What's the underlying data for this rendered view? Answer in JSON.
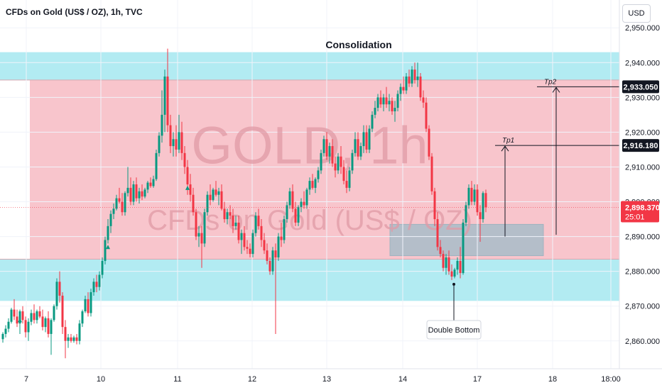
{
  "header": {
    "symbol": "CFDs on Gold (US$ / OZ), 1h, TVC",
    "currency": "USD"
  },
  "chart_data": {
    "type": "candlestick",
    "title": "Consolidation",
    "watermark": {
      "line1": "GOLD, 1h",
      "line2": "CFDs on Gold (US$ / OZ)"
    },
    "ylim": [
      2852,
      2958
    ],
    "xlim": [
      0,
      880
    ],
    "y_ticks": [
      2860,
      2870,
      2880,
      2890,
      2900,
      2910,
      2920,
      2930,
      2940,
      2950
    ],
    "y_tick_labels": [
      "2,860.000",
      "2,870.000",
      "2,880.000",
      "2,890.000",
      "2,900.000",
      "2,910.000",
      "2,920.000",
      "2,930.000",
      "2,940.000",
      "2,950.000"
    ],
    "x_ticks": [
      {
        "x": 37,
        "label": "7"
      },
      {
        "x": 142,
        "label": "10"
      },
      {
        "x": 250,
        "label": "11"
      },
      {
        "x": 355,
        "label": "12"
      },
      {
        "x": 460,
        "label": "13"
      },
      {
        "x": 567,
        "label": "14"
      },
      {
        "x": 672,
        "label": "17"
      },
      {
        "x": 778,
        "label": "18"
      },
      {
        "x": 860,
        "label": "18:00"
      }
    ],
    "zones": [
      {
        "name": "resistance-zone",
        "y_top": 2943,
        "y_bottom": 2935,
        "x_start": 0,
        "x_end": 872,
        "color": "#b2ebf2"
      },
      {
        "name": "consolidation-zone",
        "y_top": 2935,
        "y_bottom": 2883.5,
        "x_start": 42,
        "x_end": 872,
        "color": "#f8c5cc"
      },
      {
        "name": "support-zone",
        "y_top": 2883.5,
        "y_bottom": 2871.5,
        "x_start": 0,
        "x_end": 872,
        "color": "#b2ebf2"
      },
      {
        "name": "entry-box",
        "y_top": 2893.5,
        "y_bottom": 2884.5,
        "x_start": 549,
        "x_end": 765,
        "color": "#a8bcc8"
      }
    ],
    "targets": [
      {
        "label": "Tp1",
        "price": 2916.18,
        "price_label": "2,916.180",
        "x_start": 697,
        "x_end": 872,
        "arrow_x": 711,
        "arrow_from": 2890
      },
      {
        "label": "Tp2",
        "price": 2933.05,
        "price_label": "2,933.050",
        "x_start": 756,
        "x_end": 872,
        "arrow_x": 783,
        "arrow_from": 2890.5
      }
    ],
    "current_price": {
      "value": 2898.37,
      "label": "2,898.370",
      "countdown": "25:01",
      "color": "#f23645"
    },
    "annotation": {
      "text": "Double Bottom",
      "x": 639,
      "price": 2877.5
    },
    "colors": {
      "up": "#089981",
      "down": "#f23645"
    },
    "candles": [
      [
        4,
        2860.5,
        2862.5,
        2859.5,
        2862.0
      ],
      [
        8,
        2862.0,
        2864.5,
        2861.0,
        2863.5
      ],
      [
        12,
        2863.5,
        2866.5,
        2862.5,
        2865.5
      ],
      [
        16,
        2865.5,
        2869.5,
        2865.0,
        2869.0
      ],
      [
        20,
        2869.0,
        2872.0,
        2866.0,
        2867.0
      ],
      [
        24,
        2867.0,
        2869.0,
        2864.0,
        2865.0
      ],
      [
        28,
        2865.0,
        2869.0,
        2862.0,
        2868.5
      ],
      [
        32,
        2868.5,
        2870.0,
        2865.0,
        2866.0
      ],
      [
        36,
        2866.0,
        2867.0,
        2861.0,
        2862.5
      ],
      [
        40,
        2862.5,
        2866.5,
        2860.0,
        2865.5
      ],
      [
        44,
        2865.5,
        2869.0,
        2864.5,
        2868.0
      ],
      [
        48,
        2868.0,
        2870.5,
        2865.0,
        2866.0
      ],
      [
        52,
        2866.0,
        2869.0,
        2865.0,
        2868.5
      ],
      [
        56,
        2868.5,
        2870.0,
        2866.5,
        2867.0
      ],
      [
        60,
        2867.0,
        2869.0,
        2863.0,
        2864.0
      ],
      [
        64,
        2864.0,
        2867.0,
        2862.5,
        2866.5
      ],
      [
        68,
        2866.5,
        2868.5,
        2861.0,
        2862.0
      ],
      [
        72,
        2862.0,
        2866.5,
        2856.0,
        2866.0
      ],
      [
        76,
        2866.0,
        2870.5,
        2865.5,
        2870.0
      ],
      [
        80,
        2870.0,
        2878.0,
        2869.0,
        2877.0
      ],
      [
        84,
        2877.0,
        2880.0,
        2871.0,
        2873.0
      ],
      [
        88,
        2873.0,
        2874.0,
        2862.0,
        2864.0
      ],
      [
        92,
        2864.0,
        2866.0,
        2855.0,
        2860.0
      ],
      [
        96,
        2860.0,
        2862.0,
        2858.0,
        2861.0
      ],
      [
        100,
        2861.0,
        2862.0,
        2859.5,
        2860.0
      ],
      [
        104,
        2860.0,
        2861.5,
        2859.5,
        2861.0
      ],
      [
        108,
        2861.0,
        2862.0,
        2859.0,
        2860.0
      ],
      [
        112,
        2860.0,
        2866.0,
        2859.0,
        2865.0
      ],
      [
        116,
        2865.0,
        2869.0,
        2864.0,
        2868.5
      ],
      [
        120,
        2868.5,
        2873.0,
        2868.0,
        2872.0
      ],
      [
        124,
        2872.0,
        2874.0,
        2867.0,
        2868.0
      ],
      [
        128,
        2868.0,
        2875.0,
        2867.0,
        2874.0
      ],
      [
        132,
        2874.0,
        2878.0,
        2873.0,
        2877.0
      ],
      [
        136,
        2877.0,
        2879.0,
        2874.0,
        2875.5
      ],
      [
        140,
        2875.5,
        2880.0,
        2874.5,
        2879.0
      ],
      [
        144,
        2879.0,
        2884.0,
        2878.0,
        2883.0
      ],
      [
        148,
        2883.0,
        2890.0,
        2882.0,
        2889.0
      ],
      [
        152,
        2889.0,
        2895.0,
        2888.0,
        2893.0
      ],
      [
        156,
        2893.0,
        2897.5,
        2891.0,
        2896.5
      ],
      [
        160,
        2896.5,
        2899.5,
        2895.0,
        2898.0
      ],
      [
        164,
        2898.0,
        2902.0,
        2897.5,
        2901.0
      ],
      [
        168,
        2901.0,
        2904.0,
        2899.5,
        2900.0
      ],
      [
        172,
        2900.0,
        2902.5,
        2896.0,
        2897.0
      ],
      [
        176,
        2897.0,
        2903.0,
        2896.0,
        2902.5
      ],
      [
        180,
        2902.5,
        2910.0,
        2901.5,
        2904.0
      ],
      [
        184,
        2904.0,
        2907.0,
        2899.0,
        2900.0
      ],
      [
        188,
        2900.0,
        2906.0,
        2899.0,
        2905.0
      ],
      [
        192,
        2905.0,
        2907.0,
        2900.0,
        2901.0
      ],
      [
        196,
        2901.0,
        2904.0,
        2899.5,
        2903.0
      ],
      [
        200,
        2903.0,
        2905.0,
        2900.5,
        2901.5
      ],
      [
        204,
        2901.5,
        2904.0,
        2901.0,
        2903.5
      ],
      [
        208,
        2903.5,
        2906.0,
        2902.5,
        2905.5
      ],
      [
        212,
        2905.5,
        2907.0,
        2904.0,
        2904.5
      ],
      [
        216,
        2904.5,
        2907.5,
        2904.0,
        2906.5
      ],
      [
        220,
        2906.5,
        2915.0,
        2906.0,
        2914.0
      ],
      [
        224,
        2914.0,
        2920.0,
        2913.0,
        2919.0
      ],
      [
        228,
        2919.0,
        2932.0,
        2917.0,
        2925.0
      ],
      [
        232,
        2925.0,
        2938.0,
        2920.0,
        2936.0
      ],
      [
        236,
        2936.0,
        2944.0,
        2920.0,
        2922.0
      ],
      [
        240,
        2922.0,
        2925.0,
        2914.0,
        2916.0
      ],
      [
        244,
        2916.0,
        2920.0,
        2913.0,
        2918.0
      ],
      [
        248,
        2918.0,
        2922.0,
        2913.0,
        2915.0
      ],
      [
        252,
        2915.0,
        2925.0,
        2914.0,
        2920.0
      ],
      [
        256,
        2920.0,
        2923.0,
        2912.0,
        2914.0
      ],
      [
        260,
        2914.0,
        2916.0,
        2908.0,
        2910.0
      ],
      [
        264,
        2910.0,
        2912.0,
        2902.0,
        2905.0
      ],
      [
        268,
        2905.0,
        2908.0,
        2900.0,
        2902.0
      ],
      [
        272,
        2902.0,
        2904.0,
        2896.0,
        2897.0
      ],
      [
        276,
        2897.0,
        2898.0,
        2889.0,
        2890.0
      ],
      [
        280,
        2890.0,
        2893.0,
        2887.0,
        2891.0
      ],
      [
        284,
        2891.0,
        2893.0,
        2881.0,
        2888.0
      ],
      [
        288,
        2888.0,
        2898.0,
        2887.0,
        2897.0
      ],
      [
        292,
        2897.0,
        2903.0,
        2896.0,
        2902.0
      ],
      [
        296,
        2902.0,
        2905.0,
        2899.0,
        2900.5
      ],
      [
        300,
        2900.5,
        2904.0,
        2900.0,
        2903.5
      ],
      [
        304,
        2903.5,
        2906.0,
        2901.5,
        2902.0
      ],
      [
        308,
        2902.0,
        2904.0,
        2899.0,
        2903.0
      ],
      [
        312,
        2903.0,
        2905.0,
        2897.5,
        2898.0
      ],
      [
        316,
        2898.0,
        2900.0,
        2894.0,
        2895.0
      ],
      [
        320,
        2895.0,
        2898.0,
        2893.5,
        2897.0
      ],
      [
        324,
        2897.0,
        2899.0,
        2895.0,
        2896.0
      ],
      [
        328,
        2896.0,
        2898.0,
        2891.0,
        2893.0
      ],
      [
        332,
        2893.0,
        2896.0,
        2892.0,
        2894.0
      ],
      [
        336,
        2894.0,
        2896.0,
        2888.0,
        2889.0
      ],
      [
        340,
        2889.0,
        2892.0,
        2885.0,
        2891.0
      ],
      [
        344,
        2891.0,
        2893.0,
        2886.0,
        2887.0
      ],
      [
        348,
        2887.0,
        2889.0,
        2885.0,
        2886.5
      ],
      [
        352,
        2886.5,
        2888.0,
        2884.0,
        2885.0
      ],
      [
        356,
        2885.0,
        2892.0,
        2884.0,
        2891.0
      ],
      [
        360,
        2891.0,
        2897.0,
        2890.0,
        2896.0
      ],
      [
        364,
        2896.0,
        2898.0,
        2892.0,
        2893.0
      ],
      [
        368,
        2893.0,
        2895.0,
        2887.0,
        2889.0
      ],
      [
        372,
        2889.0,
        2891.0,
        2885.0,
        2886.0
      ],
      [
        376,
        2886.0,
        2888.0,
        2882.0,
        2883.0
      ],
      [
        380,
        2883.0,
        2884.0,
        2879.0,
        2880.0
      ],
      [
        384,
        2880.0,
        2887.0,
        2879.0,
        2886.0
      ],
      [
        388,
        2886.0,
        2888.0,
        2862.0,
        2884.0
      ],
      [
        392,
        2884.0,
        2891.0,
        2883.0,
        2890.0
      ],
      [
        396,
        2890.0,
        2894.0,
        2887.0,
        2889.0
      ],
      [
        400,
        2889.0,
        2896.0,
        2888.0,
        2895.0
      ],
      [
        404,
        2895.0,
        2900.0,
        2894.0,
        2899.0
      ],
      [
        408,
        2899.0,
        2904.0,
        2898.0,
        2903.0
      ],
      [
        412,
        2903.0,
        2905.0,
        2897.0,
        2898.0
      ],
      [
        416,
        2898.0,
        2900.0,
        2893.0,
        2894.0
      ],
      [
        420,
        2894.0,
        2899.0,
        2893.0,
        2898.5
      ],
      [
        424,
        2898.5,
        2901.0,
        2897.0,
        2900.0
      ],
      [
        428,
        2900.0,
        2903.0,
        2898.0,
        2899.0
      ],
      [
        432,
        2899.0,
        2904.0,
        2898.0,
        2903.5
      ],
      [
        436,
        2903.5,
        2907.0,
        2902.0,
        2906.0
      ],
      [
        440,
        2906.0,
        2908.0,
        2903.5,
        2904.0
      ],
      [
        444,
        2904.0,
        2907.0,
        2902.5,
        2906.5
      ],
      [
        448,
        2906.5,
        2910.0,
        2905.5,
        2909.0
      ],
      [
        452,
        2909.0,
        2915.0,
        2908.0,
        2914.0
      ],
      [
        456,
        2914.0,
        2919.0,
        2913.0,
        2918.0
      ],
      [
        460,
        2918.0,
        2920.0,
        2912.0,
        2913.0
      ],
      [
        464,
        2913.0,
        2917.0,
        2911.0,
        2916.0
      ],
      [
        468,
        2916.0,
        2918.0,
        2910.0,
        2911.0
      ],
      [
        472,
        2911.0,
        2913.0,
        2907.0,
        2909.0
      ],
      [
        476,
        2909.0,
        2914.0,
        2908.0,
        2913.0
      ],
      [
        480,
        2913.0,
        2916.0,
        2908.0,
        2910.0
      ],
      [
        484,
        2910.0,
        2912.0,
        2905.0,
        2906.0
      ],
      [
        488,
        2906.0,
        2909.0,
        2902.5,
        2904.0
      ],
      [
        492,
        2904.0,
        2910.0,
        2903.0,
        2909.0
      ],
      [
        496,
        2909.0,
        2915.0,
        2908.0,
        2914.0
      ],
      [
        500,
        2914.0,
        2920.0,
        2913.0,
        2918.0
      ],
      [
        504,
        2918.0,
        2920.0,
        2912.0,
        2913.0
      ],
      [
        508,
        2913.0,
        2917.0,
        2912.0,
        2916.0
      ],
      [
        512,
        2916.0,
        2922.0,
        2914.0,
        2920.0
      ],
      [
        516,
        2920.0,
        2922.0,
        2914.0,
        2915.0
      ],
      [
        520,
        2915.0,
        2922.0,
        2914.0,
        2921.0
      ],
      [
        524,
        2921.0,
        2926.0,
        2920.0,
        2925.0
      ],
      [
        528,
        2925.0,
        2929.0,
        2924.0,
        2927.0
      ],
      [
        532,
        2927.0,
        2931.0,
        2926.0,
        2930.0
      ],
      [
        536,
        2930.0,
        2932.0,
        2927.0,
        2928.0
      ],
      [
        540,
        2928.0,
        2931.0,
        2926.0,
        2930.0
      ],
      [
        544,
        2930.0,
        2933.0,
        2927.0,
        2928.0
      ],
      [
        548,
        2928.0,
        2931.0,
        2926.0,
        2929.0
      ],
      [
        552,
        2929.0,
        2930.0,
        2925.0,
        2926.0
      ],
      [
        556,
        2926.0,
        2929.0,
        2923.0,
        2927.0
      ],
      [
        560,
        2927.0,
        2932.0,
        2926.0,
        2931.0
      ],
      [
        564,
        2931.0,
        2934.0,
        2929.0,
        2933.0
      ],
      [
        568,
        2933.0,
        2936.0,
        2931.0,
        2932.0
      ],
      [
        572,
        2932.0,
        2937.0,
        2931.0,
        2936.0
      ],
      [
        576,
        2936.0,
        2938.0,
        2933.0,
        2934.0
      ],
      [
        580,
        2934.0,
        2939.0,
        2933.0,
        2938.0
      ],
      [
        584,
        2938.0,
        2940.0,
        2934.0,
        2935.0
      ],
      [
        588,
        2935.0,
        2940.0,
        2933.0,
        2936.0
      ],
      [
        592,
        2936.0,
        2937.0,
        2929.0,
        2930.0
      ],
      [
        596,
        2930.0,
        2932.0,
        2927.0,
        2928.5
      ],
      [
        600,
        2928.5,
        2930.0,
        2920.0,
        2921.0
      ],
      [
        604,
        2921.0,
        2922.0,
        2912.0,
        2913.0
      ],
      [
        608,
        2913.0,
        2914.0,
        2902.0,
        2903.0
      ],
      [
        612,
        2903.0,
        2904.0,
        2893.0,
        2895.0
      ],
      [
        616,
        2895.0,
        2897.0,
        2886.0,
        2887.0
      ],
      [
        620,
        2887.0,
        2889.0,
        2884.0,
        2885.0
      ],
      [
        624,
        2885.0,
        2886.0,
        2880.0,
        2881.0
      ],
      [
        628,
        2881.0,
        2885.0,
        2879.0,
        2884.0
      ],
      [
        632,
        2884.0,
        2886.0,
        2879.0,
        2880.0
      ],
      [
        636,
        2880.0,
        2882.0,
        2877.5,
        2878.5
      ],
      [
        640,
        2878.5,
        2881.0,
        2878.0,
        2880.5
      ],
      [
        644,
        2880.5,
        2884.0,
        2879.0,
        2883.0
      ],
      [
        648,
        2883.0,
        2887.0,
        2878.0,
        2879.5
      ],
      [
        652,
        2879.5,
        2895.0,
        2879.0,
        2894.0
      ],
      [
        656,
        2894.0,
        2900.0,
        2893.0,
        2899.0
      ],
      [
        660,
        2899.0,
        2905.0,
        2898.0,
        2904.0
      ],
      [
        664,
        2904.0,
        2906.0,
        2899.0,
        2900.0
      ],
      [
        668,
        2900.0,
        2905.0,
        2899.0,
        2903.5
      ],
      [
        672,
        2903.5,
        2905.0,
        2896.0,
        2897.0
      ],
      [
        676,
        2897.0,
        2899.0,
        2888.5,
        2895.0
      ],
      [
        680,
        2895.0,
        2903.0,
        2894.0,
        2902.5
      ],
      [
        684,
        2902.5,
        2903.5,
        2897.0,
        2898.4
      ]
    ]
  }
}
